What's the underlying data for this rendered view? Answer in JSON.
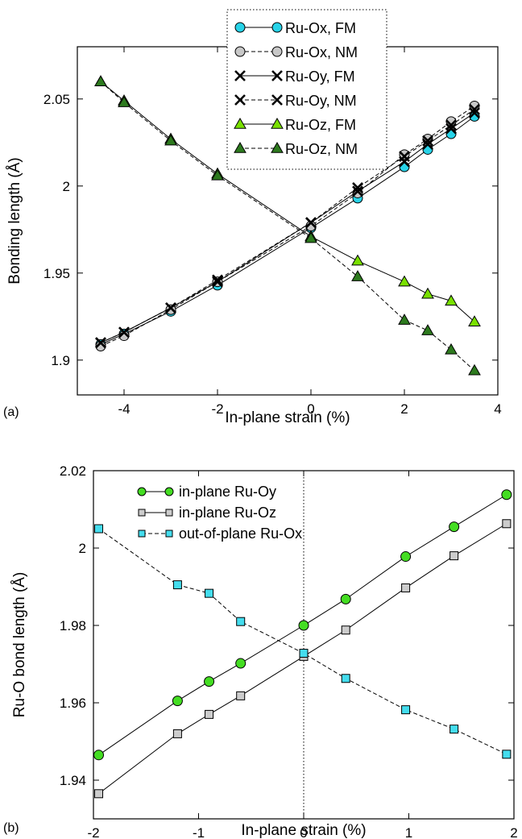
{
  "panels": [
    {
      "label": "(a)",
      "chart_data": {
        "type": "line",
        "xlabel": "In-plane strain (%)",
        "ylabel": "Bonding length (Å)",
        "xlim": [
          -5,
          4
        ],
        "ylim": [
          1.88,
          2.08
        ],
        "xticks": [
          -4,
          -2,
          0,
          2,
          4
        ],
        "yticks": [
          1.9,
          1.95,
          2,
          2.05
        ],
        "xtick_labels": [
          "-4",
          "-2",
          "0",
          "2",
          "4"
        ],
        "ytick_labels": [
          "1.9",
          "1.95",
          "2",
          "2.05"
        ],
        "grid": false,
        "legend_position": "top-center",
        "series": [
          {
            "name": "Ru-Ox, FM",
            "marker": "circle",
            "fill": "#27d3e8",
            "dash": false,
            "x": [
              -4.5,
              -4,
              -3,
              -2,
              0,
              1,
              2,
              2.5,
              3,
              3.5
            ],
            "y": [
              1.909,
              1.915,
              1.928,
              1.943,
              1.976,
              1.993,
              2.011,
              2.021,
              2.03,
              2.04
            ]
          },
          {
            "name": "Ru-Ox, NM",
            "marker": "circle",
            "fill": "#c8c8c8",
            "dash": true,
            "x": [
              -4.5,
              -4,
              -3,
              -2,
              0,
              1,
              2,
              2.5,
              3,
              3.5
            ],
            "y": [
              1.908,
              1.914,
              1.929,
              1.945,
              1.977,
              1.996,
              2.018,
              2.027,
              2.037,
              2.046
            ]
          },
          {
            "name": "Ru-Oy, FM",
            "marker": "x",
            "fill": "none",
            "dash": false,
            "x": [
              -4.5,
              -4,
              -3,
              -2,
              0,
              1,
              2,
              2.5,
              3,
              3.5
            ],
            "y": [
              1.91,
              1.916,
              1.93,
              1.945,
              1.979,
              1.997,
              2.014,
              2.024,
              2.033,
              2.042
            ]
          },
          {
            "name": "Ru-Oy, NM",
            "marker": "x",
            "fill": "none",
            "dash": true,
            "x": [
              -4.5,
              -4,
              -3,
              -2,
              0,
              1,
              2,
              2.5,
              3,
              3.5
            ],
            "y": [
              1.91,
              1.916,
              1.93,
              1.946,
              1.979,
              1.999,
              2.017,
              2.026,
              2.035,
              2.044
            ]
          },
          {
            "name": "Ru-Oz, FM",
            "marker": "triangle",
            "fill": "#79e000",
            "dash": false,
            "x": [
              -4.5,
              -4,
              -3,
              -2,
              0,
              1,
              2,
              2.5,
              3,
              3.5
            ],
            "y": [
              2.06,
              2.049,
              2.027,
              2.007,
              1.971,
              1.957,
              1.945,
              1.938,
              1.934,
              1.922
            ]
          },
          {
            "name": "Ru-Oz, NM",
            "marker": "triangle",
            "fill": "#2d7a1e",
            "dash": true,
            "x": [
              -4.5,
              -4,
              -3,
              -2,
              0,
              1,
              2,
              2.5,
              3,
              3.5
            ],
            "y": [
              2.06,
              2.048,
              2.026,
              2.006,
              1.97,
              1.948,
              1.923,
              1.917,
              1.906,
              1.894
            ]
          }
        ]
      }
    },
    {
      "label": "(b)",
      "chart_data": {
        "type": "line",
        "xlabel": "In-plane strain (%)",
        "ylabel": "Ru-O bond length (Å)",
        "xlim": [
          -2,
          2
        ],
        "ylim": [
          1.93,
          2.02
        ],
        "xticks": [
          -2,
          -1,
          0,
          1,
          2
        ],
        "yticks": [
          1.94,
          1.96,
          1.98,
          2,
          2.02
        ],
        "xtick_labels": [
          "-2",
          "-1",
          "0",
          "1",
          "2"
        ],
        "ytick_labels": [
          "1.94",
          "1.96",
          "1.98",
          "2",
          "2.02"
        ],
        "grid": false,
        "vline_x": 0,
        "legend_position": "top-left",
        "series": [
          {
            "name": "in-plane Ru-Oy",
            "marker": "circle",
            "fill": "#44dd22",
            "dash": false,
            "x": [
              -1.95,
              -1.2,
              -0.9,
              -0.6,
              0,
              0.4,
              0.97,
              1.43,
              1.93
            ],
            "y": [
              1.9465,
              1.9605,
              1.9655,
              1.9702,
              1.98,
              1.9868,
              1.9978,
              2.0055,
              2.0138
            ]
          },
          {
            "name": "in-plane Ru-Oz",
            "marker": "square",
            "fill": "#cccccc",
            "dash": false,
            "x": [
              -1.95,
              -1.2,
              -0.9,
              -0.6,
              0,
              0.4,
              0.97,
              1.43,
              1.93
            ],
            "y": [
              1.9365,
              1.952,
              1.957,
              1.9618,
              1.972,
              1.9788,
              1.9897,
              1.998,
              2.0063
            ]
          },
          {
            "name": "out-of-plane Ru-Ox",
            "marker": "square",
            "fill": "#44ddee",
            "dash": true,
            "x": [
              -1.95,
              -1.2,
              -0.9,
              -0.6,
              0,
              0.4,
              0.97,
              1.43,
              1.93
            ],
            "y": [
              2.005,
              1.9905,
              1.9883,
              1.981,
              1.9728,
              1.9663,
              1.9582,
              1.9532,
              1.9467
            ]
          }
        ]
      }
    }
  ]
}
